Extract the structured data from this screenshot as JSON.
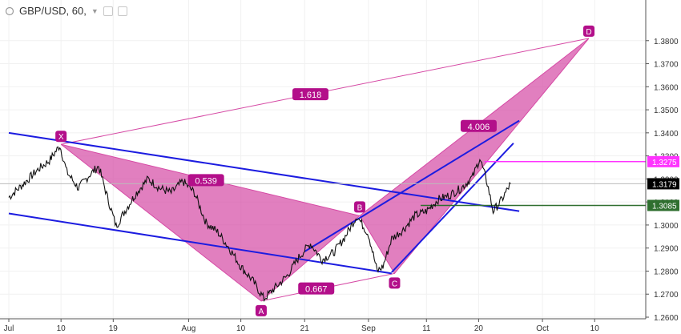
{
  "header": {
    "title": "GBP/USD, 60,",
    "icons": [
      "circle-icon",
      "chevron-down-icon",
      "settings-box-icon",
      "close-box-icon"
    ]
  },
  "colors": {
    "pattern_fill": "#d54da6",
    "pattern_line": "#d64aa5",
    "channel_line": "#1c1ce0",
    "price_line": "#111111",
    "level_magenta": "#ff33ff",
    "level_green": "#2f6f2f",
    "last_price_bg": "#000000"
  },
  "chart_data": {
    "type": "line",
    "symbol": "GBP/USD",
    "interval": "60",
    "ylim": [
      1.26,
      1.39
    ],
    "y_ticks": [
      "1.2600",
      "1.2700",
      "1.2800",
      "1.2900",
      "1.3000",
      "1.3100",
      "1.3200",
      "1.3300",
      "1.3400",
      "1.3500",
      "1.3600",
      "1.3700",
      "1.3800"
    ],
    "x_ticks": [
      {
        "label": "Jul",
        "day": 0
      },
      {
        "label": "10",
        "day": 9
      },
      {
        "label": "19",
        "day": 18
      },
      {
        "label": "Aug",
        "day": 31
      },
      {
        "label": "10",
        "day": 40
      },
      {
        "label": "21",
        "day": 51
      },
      {
        "label": "Sep",
        "day": 62
      },
      {
        "label": "11",
        "day": 72
      },
      {
        "label": "20",
        "day": 81
      },
      {
        "label": "Oct",
        "day": 92
      },
      {
        "label": "10",
        "day": 101
      }
    ],
    "price_anchors": [
      [
        0,
        1.312
      ],
      [
        3,
        1.319
      ],
      [
        5,
        1.324
      ],
      [
        7,
        1.328
      ],
      [
        8.8,
        1.3345
      ],
      [
        10,
        1.323
      ],
      [
        12,
        1.316
      ],
      [
        14,
        1.322
      ],
      [
        15.5,
        1.3255
      ],
      [
        17,
        1.312
      ],
      [
        18.5,
        1.2995
      ],
      [
        20,
        1.306
      ],
      [
        22,
        1.314
      ],
      [
        24,
        1.32
      ],
      [
        26,
        1.316
      ],
      [
        28,
        1.314
      ],
      [
        30,
        1.319
      ],
      [
        32,
        1.314
      ],
      [
        34,
        1.301
      ],
      [
        36,
        1.297
      ],
      [
        38,
        1.29
      ],
      [
        40,
        1.282
      ],
      [
        42,
        1.276
      ],
      [
        44,
        1.268
      ],
      [
        46,
        1.273
      ],
      [
        48,
        1.278
      ],
      [
        50,
        1.286
      ],
      [
        52,
        1.292
      ],
      [
        54,
        1.285
      ],
      [
        56,
        1.288
      ],
      [
        58,
        1.295
      ],
      [
        60,
        1.304
      ],
      [
        62,
        1.296
      ],
      [
        63.5,
        1.28
      ],
      [
        64.5,
        1.282
      ],
      [
        66,
        1.294
      ],
      [
        68,
        1.298
      ],
      [
        70,
        1.304
      ],
      [
        72,
        1.306
      ],
      [
        74,
        1.311
      ],
      [
        76,
        1.313
      ],
      [
        78,
        1.316
      ],
      [
        80,
        1.321
      ],
      [
        81.2,
        1.329
      ],
      [
        82.5,
        1.318
      ],
      [
        83.5,
        1.306
      ],
      [
        85,
        1.311
      ],
      [
        86.5,
        1.3179
      ]
    ],
    "harmonic_pattern": {
      "points": [
        {
          "label": "X",
          "day": 9,
          "price": 1.335
        },
        {
          "label": "A",
          "day": 43.5,
          "price": 1.267
        },
        {
          "label": "B",
          "day": 60.5,
          "price": 1.304
        },
        {
          "label": "C",
          "day": 66.5,
          "price": 1.279
        },
        {
          "label": "D",
          "day": 100,
          "price": 1.381
        }
      ],
      "ratios": [
        {
          "label": "1.618",
          "day": 52,
          "price": 1.3566
        },
        {
          "label": "0.539",
          "day": 34,
          "price": 1.3193
        },
        {
          "label": "0.667",
          "day": 53,
          "price": 1.2723
        },
        {
          "label": "4.006",
          "day": 81,
          "price": 1.3428
        }
      ]
    },
    "channel_lines": [
      {
        "from": [
          0,
          1.34
        ],
        "to": [
          88,
          1.306
        ]
      },
      {
        "from": [
          0,
          1.305
        ],
        "to": [
          66,
          1.279
        ]
      },
      {
        "from": [
          51,
          1.2885
        ],
        "to": [
          88,
          1.3453
        ]
      },
      {
        "from": [
          66,
          1.2795
        ],
        "to": [
          87,
          1.3355
        ]
      }
    ],
    "levels": [
      {
        "label": "1.3275",
        "price": 1.3275,
        "from_day": 82,
        "style": "magenta"
      },
      {
        "label": "1.3085",
        "price": 1.3085,
        "from_day": 71,
        "style": "green"
      }
    ],
    "last_price": {
      "label": "1.3179",
      "price": 1.3179
    }
  }
}
